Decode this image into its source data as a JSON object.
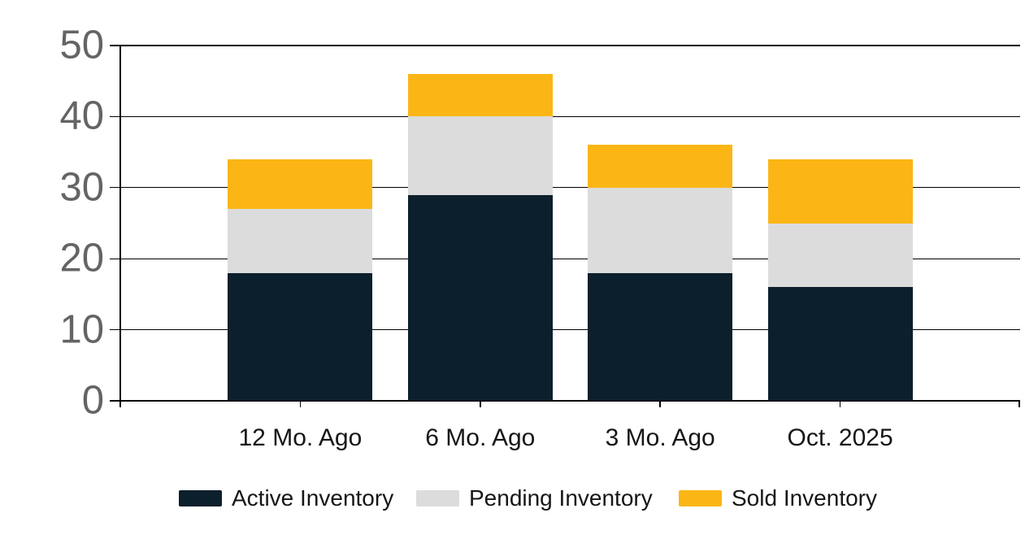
{
  "chart_data": {
    "type": "bar",
    "stacked": true,
    "title": "",
    "xlabel": "",
    "ylabel": "",
    "categories": [
      "12 Mo. Ago",
      "6 Mo. Ago",
      "3 Mo. Ago",
      "Oct. 2025"
    ],
    "series": [
      {
        "name": "Active Inventory",
        "color": "#0c1f2c",
        "values": [
          18,
          29,
          18,
          16
        ]
      },
      {
        "name": "Pending Inventory",
        "color": "#dcdcdc",
        "values": [
          9,
          11,
          12,
          9
        ]
      },
      {
        "name": "Sold Inventory",
        "color": "#fbb616",
        "values": [
          7,
          6,
          6,
          9
        ]
      }
    ],
    "totals": [
      34,
      46,
      36,
      34
    ],
    "ylim": [
      0,
      50
    ],
    "yticks": [
      0,
      10,
      20,
      30,
      40,
      50
    ],
    "grid": true,
    "legend_position": "bottom"
  },
  "colors": {
    "background": "#ffffff",
    "gridline": "#000000",
    "y_tick_label": "#636466",
    "x_tick_label": "#161616",
    "legend_text": "#161616",
    "active": "#0c1f2c",
    "pending": "#dcdcdc",
    "sold": "#fbb616"
  }
}
